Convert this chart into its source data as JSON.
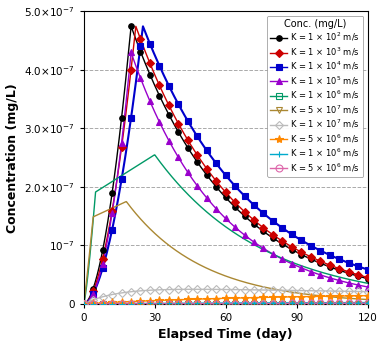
{
  "xlabel": "Elapsed Time (day)",
  "ylabel": "Concentration (mg/L)",
  "xlim": [
    0,
    120
  ],
  "ylim": [
    0,
    5e-07
  ],
  "xticks": [
    0,
    30,
    60,
    90,
    120
  ],
  "yticks": [
    0,
    1e-07,
    2e-07,
    3e-07,
    4e-07,
    5e-07
  ],
  "ytick_labels": [
    "0",
    "10$^{-7}$",
    "2.0×10$^{-7}$",
    "3.0×10$^{-7}$",
    "4.0×10$^{-7}$",
    "5.0×10$^{-7}$"
  ],
  "grid_color": "#aaaaaa",
  "background_color": "#ffffff",
  "legend_title": "Conc. (mg/L)",
  "series": [
    {
      "label": "K = 1 × 10$^{2}$ m/s",
      "color": "#000000",
      "marker": "o",
      "mfc": "#000000",
      "mec": "#000000",
      "ms": 4,
      "lw": 1.0
    },
    {
      "label": "K = 1 × 10$^{3}$ m/s",
      "color": "#cc0000",
      "marker": "D",
      "mfc": "#cc0000",
      "mec": "#cc0000",
      "ms": 4,
      "lw": 1.0
    },
    {
      "label": "K = 1 × 10$^{4}$ m/s",
      "color": "#0000cc",
      "marker": "s",
      "mfc": "#0000cc",
      "mec": "#0000cc",
      "ms": 4,
      "lw": 1.5
    },
    {
      "label": "K = 1 × 10$^{5}$ m/s",
      "color": "#9900cc",
      "marker": "^",
      "mfc": "#9900cc",
      "mec": "#9900cc",
      "ms": 5,
      "lw": 1.0
    },
    {
      "label": "K = 1 × 10$^{6}$ m/s",
      "color": "#009966",
      "marker": "s",
      "mfc": "none",
      "mec": "#009966",
      "ms": 5,
      "lw": 1.0
    },
    {
      "label": "K = 5 × 10$^{7}$ m/s",
      "color": "#aa8833",
      "marker": "v",
      "mfc": "none",
      "mec": "#aa8833",
      "ms": 5,
      "lw": 1.0
    },
    {
      "label": "K = 1 × 10$^{7}$ m/s",
      "color": "#bbbbbb",
      "marker": "D",
      "mfc": "none",
      "mec": "#bbbbbb",
      "ms": 4,
      "lw": 1.0
    },
    {
      "label": "K = 5 × 10$^{6}$ m/s",
      "color": "#ff8800",
      "marker": "*",
      "mfc": "#ff8800",
      "mec": "#ff8800",
      "ms": 6,
      "lw": 1.0
    },
    {
      "label": "K = 1 × 10$^{6}$ m/s",
      "color": "#00aacc",
      "marker": "+",
      "mfc": "none",
      "mec": "#00aacc",
      "ms": 5,
      "lw": 1.0
    },
    {
      "label": "K = 5 × 10$^{6}$ m/s",
      "color": "#dd66aa",
      "marker": "o",
      "mfc": "none",
      "mec": "#dd66aa",
      "ms": 5,
      "lw": 1.0
    }
  ]
}
